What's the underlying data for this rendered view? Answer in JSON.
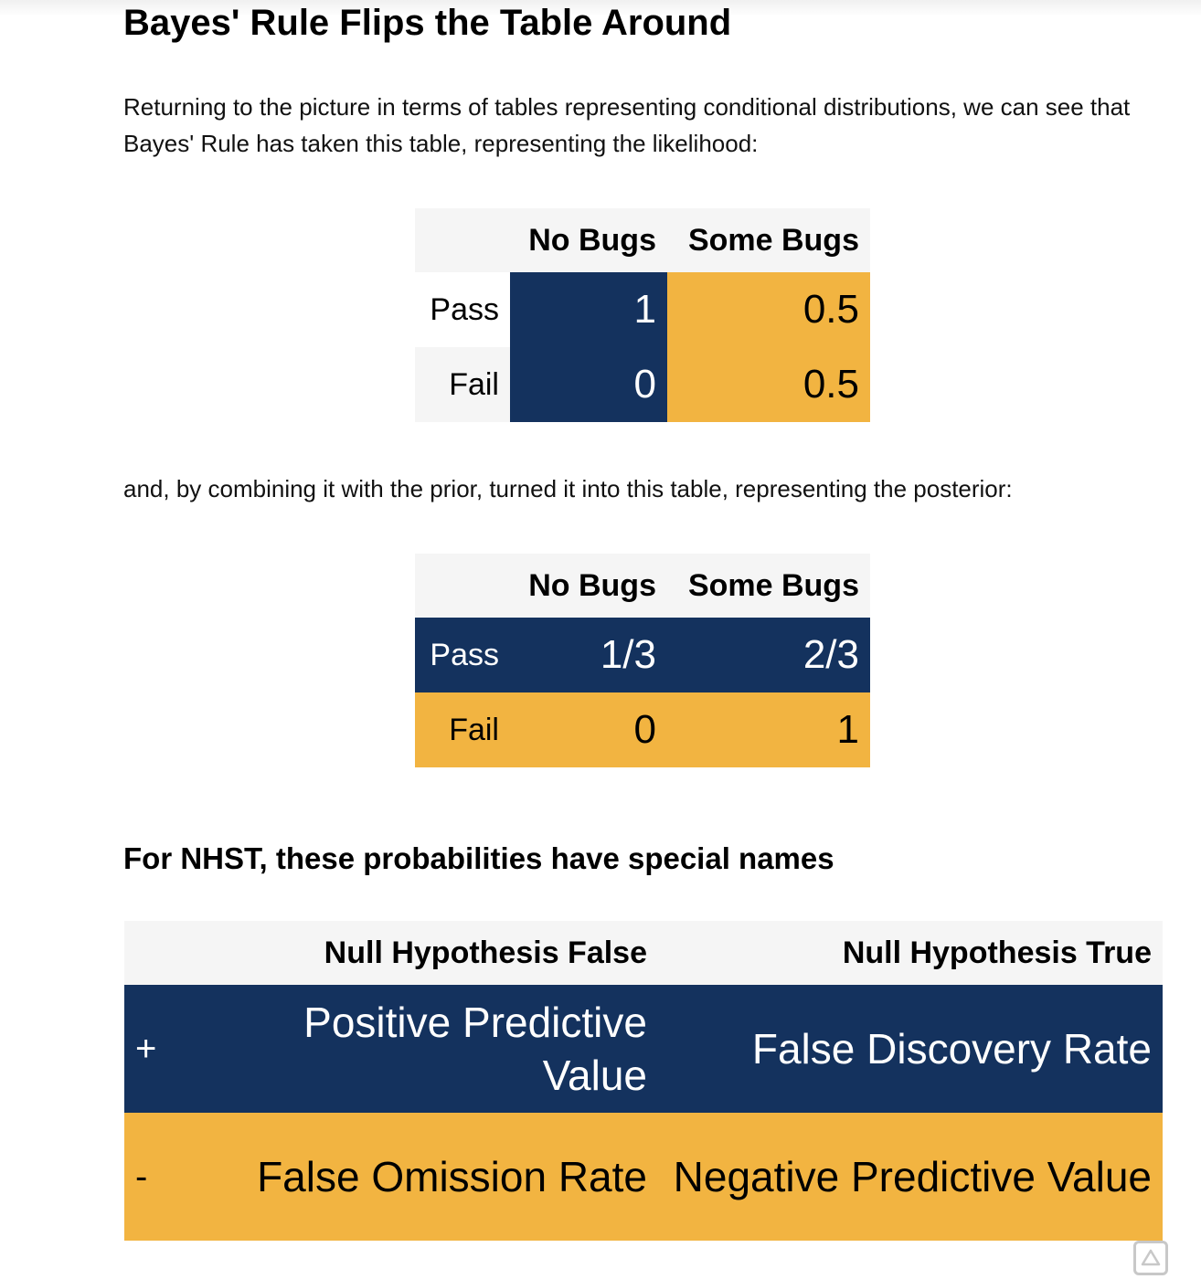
{
  "title": "Bayes' Rule Flips the Table Around",
  "paragraph1": "Returning to the picture in terms of tables representing conditional distributions, we can see that Bayes' Rule has taken this table, representing the likelihood:",
  "likelihood_table": {
    "headers": [
      "No Bugs",
      "Some Bugs"
    ],
    "rows": [
      {
        "label": "Pass",
        "values": [
          "1",
          "0.5"
        ]
      },
      {
        "label": "Fail",
        "values": [
          "0",
          "0.5"
        ]
      }
    ]
  },
  "paragraph2": "and, by combining it with the prior, turned it into this table, representing the posterior:",
  "posterior_table": {
    "headers": [
      "No Bugs",
      "Some Bugs"
    ],
    "rows": [
      {
        "label": "Pass",
        "values": [
          "1/3",
          "2/3"
        ]
      },
      {
        "label": "Fail",
        "values": [
          "0",
          "1"
        ]
      }
    ]
  },
  "nhst_heading": "For NHST, these probabilities have special names",
  "nhst_table": {
    "headers": [
      "Null Hypothesis False",
      "Null Hypothesis True"
    ],
    "rows": [
      {
        "label": "+",
        "values": [
          "Positive Predictive Value",
          "False Discovery Rate"
        ]
      },
      {
        "label": "-",
        "values": [
          "False Omission Rate",
          "Negative Predictive Value"
        ]
      }
    ]
  },
  "colors": {
    "navy": "#14325e",
    "gold": "#f2b441",
    "header_bg": "#f5f5f5"
  },
  "scroll_button": {
    "icon": "triangle-up-icon"
  }
}
